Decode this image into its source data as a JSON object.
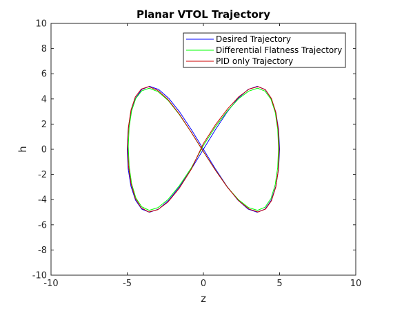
{
  "chart_data": {
    "type": "line",
    "title": "Planar VTOL Trajectory",
    "xlabel": "z",
    "ylabel": "h",
    "xlim": [
      -10,
      10
    ],
    "ylim": [
      -10,
      10
    ],
    "xticks": [
      -10,
      -5,
      0,
      5,
      10
    ],
    "yticks": [
      -10,
      -8,
      -6,
      -4,
      -2,
      0,
      2,
      4,
      6,
      8,
      10
    ],
    "grid": false,
    "legend_position": "top-right",
    "series": [
      {
        "name": "Desired Trajectory",
        "color": "#0000ff",
        "x": [
          0.0,
          0.781,
          1.545,
          2.27,
          2.939,
          3.536,
          4.045,
          4.455,
          4.755,
          4.938,
          5.0,
          4.938,
          4.755,
          4.455,
          4.045,
          3.536,
          2.939,
          2.27,
          1.545,
          0.781,
          0.0,
          -0.781,
          -1.545,
          -2.27,
          -2.939,
          -3.536,
          -4.045,
          -4.455,
          -4.755,
          -4.938,
          -5.0,
          -4.938,
          -4.755,
          -4.455,
          -4.045,
          -3.536,
          -2.939,
          -2.27,
          -1.545,
          -0.781,
          0.0
        ],
        "y": [
          0.0,
          1.545,
          2.939,
          4.045,
          4.755,
          5.0,
          4.755,
          4.045,
          2.939,
          1.545,
          0.0,
          -1.545,
          -2.939,
          -4.045,
          -4.755,
          -5.0,
          -4.755,
          -4.045,
          -2.939,
          -1.545,
          0.0,
          1.545,
          2.939,
          4.045,
          4.755,
          5.0,
          4.755,
          4.045,
          2.939,
          1.545,
          0.0,
          -1.545,
          -2.939,
          -4.045,
          -4.755,
          -5.0,
          -4.755,
          -4.045,
          -2.939,
          -1.545,
          0.0
        ]
      },
      {
        "name": "Differential Flatness Trajectory",
        "color": "#00ff00",
        "x": [
          0.0,
          0.804,
          1.583,
          2.312,
          2.975,
          3.557,
          4.046,
          4.433,
          4.711,
          4.876,
          4.93,
          4.876,
          4.711,
          4.433,
          4.046,
          3.557,
          2.975,
          2.312,
          1.583,
          0.804,
          0.0,
          -0.804,
          -1.583,
          -2.312,
          -2.975,
          -3.557,
          -4.046,
          -4.433,
          -4.711,
          -4.876,
          -4.93,
          -4.876,
          -4.711,
          -4.433,
          -4.046,
          -3.557,
          -2.975,
          -2.312,
          -1.583,
          -0.804,
          0.0
        ],
        "y": [
          0.3,
          1.82,
          3.05,
          4.02,
          4.62,
          4.85,
          4.62,
          3.98,
          2.95,
          1.6,
          0.1,
          -1.45,
          -2.83,
          -3.92,
          -4.6,
          -4.85,
          -4.64,
          -4.02,
          -3.02,
          -1.68,
          -0.2,
          1.36,
          2.76,
          3.88,
          4.58,
          4.85,
          4.64,
          4.05,
          3.05,
          1.72,
          0.22,
          -1.32,
          -2.73,
          -3.86,
          -4.57,
          -4.85,
          -4.63,
          -3.98,
          -2.9,
          -1.5,
          0.3
        ]
      },
      {
        "name": "PID only Trajectory",
        "color": "#cc0000",
        "x": [
          0.0,
          0.81,
          1.595,
          2.33,
          2.998,
          3.586,
          4.079,
          4.47,
          4.752,
          4.92,
          4.975,
          4.92,
          4.752,
          4.47,
          4.079,
          3.586,
          2.998,
          2.33,
          1.595,
          0.81,
          0.0,
          -0.81,
          -1.595,
          -2.33,
          -2.998,
          -3.586,
          -4.079,
          -4.47,
          -4.752,
          -4.92,
          -4.975,
          -4.92,
          -4.752,
          -4.47,
          -4.079,
          -3.586,
          -2.998,
          -2.33,
          -1.595,
          -0.81,
          0.0
        ],
        "y": [
          0.45,
          1.98,
          3.22,
          4.18,
          4.78,
          4.98,
          4.72,
          4.02,
          2.93,
          1.52,
          -0.05,
          -1.62,
          -3.0,
          -4.08,
          -4.75,
          -4.98,
          -4.75,
          -4.1,
          -3.05,
          -1.7,
          -0.18,
          1.38,
          2.82,
          3.96,
          4.68,
          4.98,
          4.78,
          4.15,
          3.12,
          1.78,
          0.25,
          -1.3,
          -2.72,
          -3.9,
          -4.65,
          -4.98,
          -4.8,
          -4.2,
          -3.12,
          -1.62,
          0.45
        ]
      }
    ]
  }
}
